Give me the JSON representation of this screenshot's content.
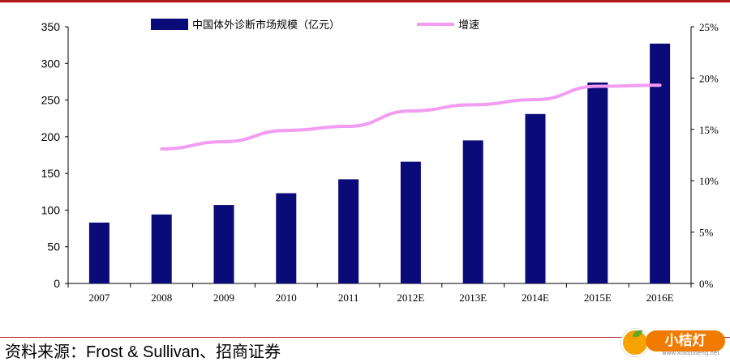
{
  "chart_data": {
    "type": "bar",
    "categories": [
      "2007",
      "2008",
      "2009",
      "2010",
      "2011",
      "2012E",
      "2013E",
      "2014E",
      "2015E",
      "2016E"
    ],
    "series": [
      {
        "name": "中国体外诊断市场规模（亿元）",
        "type": "bar",
        "axis": "left",
        "values": [
          83,
          94,
          107,
          123,
          142,
          166,
          195,
          231,
          274,
          327
        ],
        "color": "#0a0a78"
      },
      {
        "name": "增速",
        "type": "line",
        "axis": "right",
        "values": [
          null,
          13.1,
          13.8,
          14.9,
          15.3,
          16.8,
          17.4,
          17.9,
          19.2,
          19.3
        ],
        "color": "#f29cf2"
      }
    ],
    "y_left": {
      "ylim": [
        0,
        350
      ],
      "ticks": [
        "0",
        "50",
        "100",
        "150",
        "200",
        "250",
        "300",
        "350"
      ]
    },
    "y_right": {
      "ylim": [
        0,
        25
      ],
      "ticks": [
        "0%",
        "5%",
        "10%",
        "15%",
        "20%",
        "25%"
      ]
    },
    "legend_position": "top-center",
    "grid": false
  },
  "source_text": "资料来源：Frost & Sullivan、招商证券",
  "watermark": {
    "text": "小桔灯",
    "site": "www.xiaojudeng.net"
  }
}
